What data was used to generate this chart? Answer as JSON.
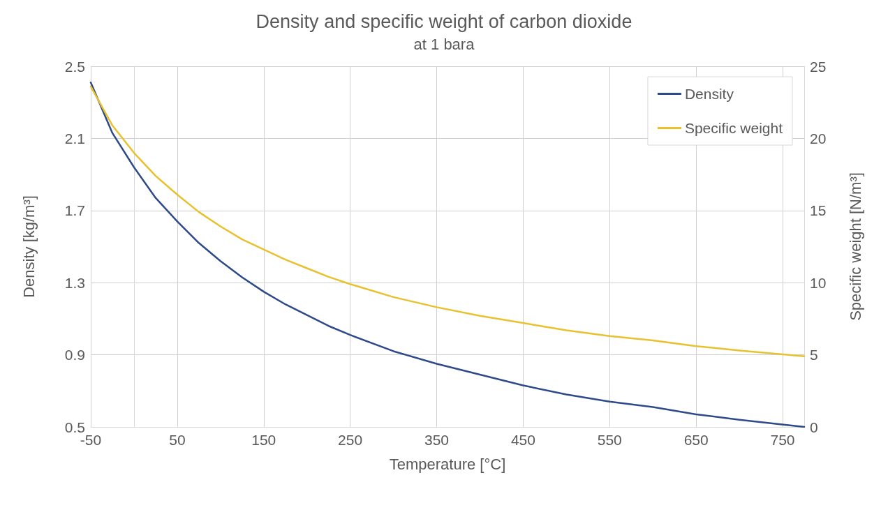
{
  "chart_data": {
    "type": "line",
    "title": "Density and specific weight of carbon dioxide",
    "subtitle": "at 1 bara",
    "xlabel": "Temperature [°C]",
    "ylabel": "Density [kg/m³]",
    "y2label": "Specific weight [N/m³]",
    "x": [
      -50,
      -25,
      0,
      25,
      50,
      75,
      100,
      125,
      150,
      175,
      200,
      225,
      250,
      300,
      350,
      400,
      450,
      500,
      550,
      600,
      650,
      700,
      775
    ],
    "xlim": [
      -50,
      775
    ],
    "xticks": [
      -50,
      50,
      150,
      250,
      350,
      450,
      550,
      650,
      750
    ],
    "ylim": [
      0.5,
      2.5
    ],
    "yticks": [
      0.5,
      0.9,
      1.3,
      1.7,
      2.1,
      2.5
    ],
    "y2lim": [
      0,
      25
    ],
    "y2ticks": [
      0,
      5,
      10,
      15,
      20,
      25
    ],
    "grid": true,
    "legend": "top right",
    "marker": "none",
    "line_style": "solid",
    "series": [
      {
        "name": "Density",
        "color": "#2e4a8a",
        "values": [
          2.41,
          2.13,
          1.94,
          1.77,
          1.64,
          1.52,
          1.42,
          1.33,
          1.25,
          1.18,
          1.12,
          1.06,
          1.01,
          0.92,
          0.85,
          0.79,
          0.73,
          0.68,
          0.64,
          0.61,
          0.57,
          0.54,
          0.5
        ]
      },
      {
        "name": "Specific weight",
        "color": "#e8c12f",
        "axis": "y2",
        "values": [
          23.6,
          20.9,
          19.0,
          17.4,
          16.1,
          14.9,
          13.9,
          13.0,
          12.3,
          11.6,
          11.0,
          10.4,
          9.9,
          9.0,
          8.3,
          7.7,
          7.2,
          6.7,
          6.3,
          6.0,
          5.6,
          5.3,
          4.9
        ]
      }
    ]
  }
}
